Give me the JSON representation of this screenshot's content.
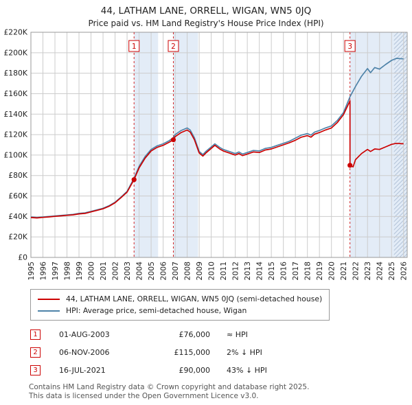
{
  "title": "44, LATHAM LANE, ORRELL, WIGAN, WN5 0JQ",
  "subtitle": "Price paid vs. HM Land Registry's House Price Index (HPI)",
  "colors": {
    "accent_red": "#cc0000",
    "hpi_blue": "#4d82a8",
    "band_fill": "#e3ecf7",
    "hatch_line": "#b4c4d9",
    "grid": "#cccccc",
    "border": "#999999"
  },
  "legend": [
    {
      "label": "44, LATHAM LANE, ORRELL, WIGAN, WN5 0JQ (semi-detached house)",
      "color": "#cc0000"
    },
    {
      "label": "HPI: Average price, semi-detached house, Wigan",
      "color": "#4d82a8"
    }
  ],
  "transactions": [
    {
      "num": "1",
      "date": "01-AUG-2003",
      "price": "£76,000",
      "vs_hpi": "≈ HPI"
    },
    {
      "num": "2",
      "date": "06-NOV-2006",
      "price": "£115,000",
      "vs_hpi": "2% ↓ HPI"
    },
    {
      "num": "3",
      "date": "16-JUL-2021",
      "price": "£90,000",
      "vs_hpi": "43% ↓ HPI"
    }
  ],
  "footer": {
    "line1": "Contains HM Land Registry data © Crown copyright and database right 2025.",
    "line2": "This data is licensed under the Open Government Licence v3.0."
  },
  "chart_data": {
    "type": "line",
    "title": "44, LATHAM LANE, ORRELL, WIGAN, WN5 0JQ",
    "subtitle": "Price paid vs. HM Land Registry's House Price Index (HPI)",
    "grid": true,
    "legend_position": "bottom",
    "x_range": [
      1995,
      2026.3
    ],
    "ylim": [
      0,
      220000
    ],
    "y_tick_step": 20000,
    "y_tick_labels": [
      "£0",
      "£20K",
      "£40K",
      "£60K",
      "£80K",
      "£100K",
      "£120K",
      "£140K",
      "£160K",
      "£180K",
      "£200K",
      "£220K"
    ],
    "x_ticks": [
      1995,
      1996,
      1997,
      1998,
      1999,
      2000,
      2001,
      2002,
      2003,
      2004,
      2005,
      2006,
      2007,
      2008,
      2009,
      2010,
      2011,
      2012,
      2013,
      2014,
      2015,
      2016,
      2017,
      2018,
      2019,
      2020,
      2021,
      2022,
      2023,
      2024,
      2025,
      2026
    ],
    "bands": [
      [
        2003.58,
        2005.58
      ],
      [
        2006.85,
        2008.9
      ],
      [
        2021.54,
        2026.3
      ]
    ],
    "hatch_from": 2025.2,
    "sales": [
      {
        "num": "1",
        "year": 2003.58,
        "price": 76000
      },
      {
        "num": "2",
        "year": 2006.85,
        "price": 115000
      },
      {
        "num": "3",
        "year": 2021.54,
        "price": 90000
      }
    ],
    "series": [
      {
        "name": "HPI: Average price, semi-detached house, Wigan",
        "color": "#4d82a8",
        "points": [
          [
            1995,
            39500
          ],
          [
            1995.5,
            39000
          ],
          [
            1996,
            39500
          ],
          [
            1996.5,
            40000
          ],
          [
            1997,
            40500
          ],
          [
            1997.5,
            41000
          ],
          [
            1998,
            41500
          ],
          [
            1998.5,
            42000
          ],
          [
            1999,
            43000
          ],
          [
            1999.5,
            43500
          ],
          [
            2000,
            45000
          ],
          [
            2000.5,
            46500
          ],
          [
            2001,
            48000
          ],
          [
            2001.5,
            50500
          ],
          [
            2002,
            54000
          ],
          [
            2002.5,
            59000
          ],
          [
            2003,
            64500
          ],
          [
            2003.58,
            77500
          ],
          [
            2004,
            89000
          ],
          [
            2004.5,
            98500
          ],
          [
            2005,
            105500
          ],
          [
            2005.5,
            109000
          ],
          [
            2006,
            111000
          ],
          [
            2006.5,
            114000
          ],
          [
            2006.85,
            117000
          ],
          [
            2007,
            120000
          ],
          [
            2007.5,
            124000
          ],
          [
            2008,
            126500
          ],
          [
            2008.25,
            124500
          ],
          [
            2008.6,
            117000
          ],
          [
            2009,
            103500
          ],
          [
            2009.3,
            100500
          ],
          [
            2009.6,
            104000
          ],
          [
            2010,
            108000
          ],
          [
            2010.3,
            111000
          ],
          [
            2010.7,
            107500
          ],
          [
            2011,
            105500
          ],
          [
            2011.5,
            103500
          ],
          [
            2012,
            101500
          ],
          [
            2012.3,
            103000
          ],
          [
            2012.6,
            101000
          ],
          [
            2013,
            102500
          ],
          [
            2013.5,
            104500
          ],
          [
            2014,
            104000
          ],
          [
            2014.5,
            106500
          ],
          [
            2015,
            107500
          ],
          [
            2015.5,
            109500
          ],
          [
            2016,
            111500
          ],
          [
            2016.5,
            113500
          ],
          [
            2017,
            116500
          ],
          [
            2017.5,
            119500
          ],
          [
            2018,
            121000
          ],
          [
            2018.3,
            119500
          ],
          [
            2018.6,
            122500
          ],
          [
            2019,
            124000
          ],
          [
            2019.5,
            126500
          ],
          [
            2020,
            128500
          ],
          [
            2020.5,
            134000
          ],
          [
            2021,
            141500
          ],
          [
            2021.54,
            157000
          ],
          [
            2022,
            167000
          ],
          [
            2022.5,
            177000
          ],
          [
            2023,
            184500
          ],
          [
            2023.25,
            180500
          ],
          [
            2023.6,
            185500
          ],
          [
            2024,
            184000
          ],
          [
            2024.5,
            188500
          ],
          [
            2025,
            192500
          ],
          [
            2025.4,
            194500
          ],
          [
            2026,
            194000
          ]
        ]
      },
      {
        "name": "44, LATHAM LANE, ORRELL, WIGAN, WN5 0JQ (semi-detached house)",
        "color": "#cc0000",
        "points": [
          [
            1995,
            39000
          ],
          [
            1995.5,
            38600
          ],
          [
            1996,
            39100
          ],
          [
            1996.5,
            39600
          ],
          [
            1997,
            40100
          ],
          [
            1997.5,
            40600
          ],
          [
            1998,
            41100
          ],
          [
            1998.5,
            41600
          ],
          [
            1999,
            42500
          ],
          [
            1999.5,
            43000
          ],
          [
            2000,
            44500
          ],
          [
            2000.5,
            46000
          ],
          [
            2001,
            47500
          ],
          [
            2001.5,
            50000
          ],
          [
            2002,
            53400
          ],
          [
            2002.5,
            58400
          ],
          [
            2003,
            63800
          ],
          [
            2003.58,
            76000
          ],
          [
            2004,
            87500
          ],
          [
            2004.5,
            97000
          ],
          [
            2005,
            104000
          ],
          [
            2005.5,
            107500
          ],
          [
            2006,
            109500
          ],
          [
            2006.5,
            112500
          ],
          [
            2006.85,
            115000
          ],
          [
            2007,
            118000
          ],
          [
            2007.5,
            122000
          ],
          [
            2008,
            124500
          ],
          [
            2008.25,
            122500
          ],
          [
            2008.6,
            115000
          ],
          [
            2009,
            102000
          ],
          [
            2009.3,
            99000
          ],
          [
            2009.6,
            102500
          ],
          [
            2010,
            106500
          ],
          [
            2010.3,
            109500
          ],
          [
            2010.7,
            106000
          ],
          [
            2011,
            104000
          ],
          [
            2011.5,
            102000
          ],
          [
            2012,
            100000
          ],
          [
            2012.3,
            101500
          ],
          [
            2012.6,
            99500
          ],
          [
            2013,
            101000
          ],
          [
            2013.5,
            103000
          ],
          [
            2014,
            102500
          ],
          [
            2014.5,
            105000
          ],
          [
            2015,
            106000
          ],
          [
            2015.5,
            108000
          ],
          [
            2016,
            110000
          ],
          [
            2016.5,
            112000
          ],
          [
            2017,
            114500
          ],
          [
            2017.5,
            117500
          ],
          [
            2018,
            119000
          ],
          [
            2018.3,
            117500
          ],
          [
            2018.6,
            120500
          ],
          [
            2019,
            122000
          ],
          [
            2019.5,
            124500
          ],
          [
            2020,
            126500
          ],
          [
            2020.5,
            132000
          ],
          [
            2021,
            139500
          ],
          [
            2021.54,
            153000
          ],
          [
            2021.54,
            90000
          ],
          [
            2021.8,
            88500
          ],
          [
            2022,
            95500
          ],
          [
            2022.5,
            101500
          ],
          [
            2023,
            105500
          ],
          [
            2023.25,
            103500
          ],
          [
            2023.6,
            106000
          ],
          [
            2024,
            105500
          ],
          [
            2024.5,
            108000
          ],
          [
            2025,
            110500
          ],
          [
            2025.4,
            111500
          ],
          [
            2026,
            111000
          ]
        ]
      }
    ]
  }
}
